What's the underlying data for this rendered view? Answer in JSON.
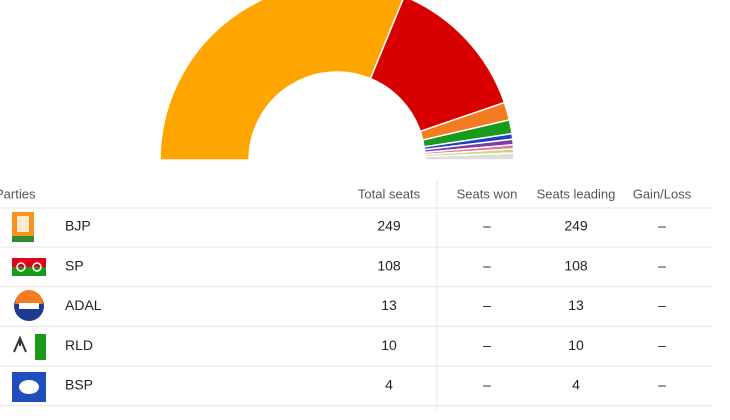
{
  "chart_data": {
    "type": "donut",
    "half": true,
    "categories": [
      null,
      null,
      null,
      null,
      null,
      null,
      null,
      null,
      null
    ],
    "values": [
      249,
      108,
      13,
      10,
      4,
      4,
      3,
      3,
      5
    ],
    "colors": [
      "#ffa500",
      "#d90000",
      "#f47b20",
      "#1a9a1a",
      "#1f3fbf",
      "#7b3fa0",
      "#e86fa5",
      "#c8d96f",
      "#dddddd"
    ]
  },
  "table": {
    "header": [
      "Parties",
      "Total seats",
      "Seats won",
      "Seats leading",
      "Gain/Loss"
    ],
    "rows": [
      [
        "BJP",
        249,
        "–",
        249,
        "–"
      ],
      [
        "SP",
        108,
        "–",
        108,
        "–"
      ],
      [
        "ADAL",
        13,
        "–",
        13,
        "–"
      ],
      [
        "RLD",
        10,
        "–",
        10,
        "–"
      ],
      [
        "BSP",
        4,
        "–",
        4,
        "–"
      ]
    ]
  }
}
